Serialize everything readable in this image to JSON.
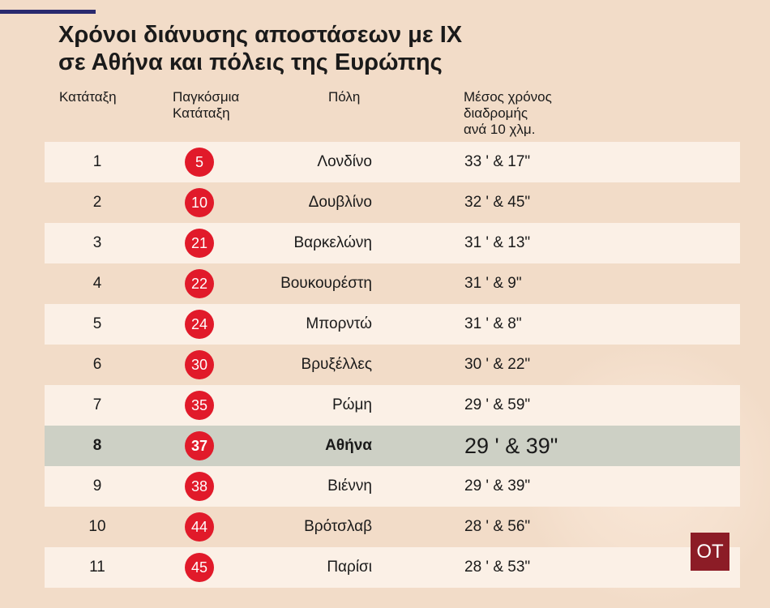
{
  "title_lines": [
    "Χρόνοι διάνυσης αποστάσεων με ΙΧ",
    "σε Αθήνα και πόλεις της Ευρώπης"
  ],
  "headers": {
    "rank": "Κατάταξη",
    "world_rank": [
      "Παγκόσμια",
      "Κατάταξη"
    ],
    "city": "Πόλη",
    "time": [
      "Μέσος χρόνος",
      "διαδρομής",
      "ανά 10 χλμ."
    ]
  },
  "colors": {
    "background": "#f2dcc8",
    "badge": "#e11a2a",
    "highlight_row": "#cdd0c5",
    "logo": "#8c1c26"
  },
  "highlight_city": "Αθήνα",
  "logo_text": "OT",
  "chart_data": {
    "type": "table",
    "columns": [
      "Κατάταξη",
      "Παγκόσμια Κατάταξη",
      "Πόλη",
      "Μέσος χρόνος διαδρομής ανά 10 χλμ."
    ],
    "rows": [
      {
        "rank": "1",
        "world_rank": "5",
        "city": "Λονδίνο",
        "time": "33 ' & 17\""
      },
      {
        "rank": "2",
        "world_rank": "10",
        "city": "Δουβλίνο",
        "time": "32 ' & 45\""
      },
      {
        "rank": "3",
        "world_rank": "21",
        "city": "Βαρκελώνη",
        "time": "31 ' & 13\""
      },
      {
        "rank": "4",
        "world_rank": "22",
        "city": "Βουκουρέστη",
        "time": "31 ' & 9\""
      },
      {
        "rank": "5",
        "world_rank": "24",
        "city": "Μπορντώ",
        "time": "31 ' & 8\""
      },
      {
        "rank": "6",
        "world_rank": "30",
        "city": "Βρυξέλλες",
        "time": "30 ' & 22\""
      },
      {
        "rank": "7",
        "world_rank": "35",
        "city": "Ρώμη",
        "time": "29 ' & 59\""
      },
      {
        "rank": "8",
        "world_rank": "37",
        "city": "Αθήνα",
        "time": "29 ' & 39\""
      },
      {
        "rank": "9",
        "world_rank": "38",
        "city": "Βιέννη",
        "time": "29 ' & 39\""
      },
      {
        "rank": "10",
        "world_rank": "44",
        "city": "Βρότσλαβ",
        "time": "28 ' & 56\""
      },
      {
        "rank": "11",
        "world_rank": "45",
        "city": "Παρίσι",
        "time": "28 ' & 53\""
      }
    ]
  }
}
